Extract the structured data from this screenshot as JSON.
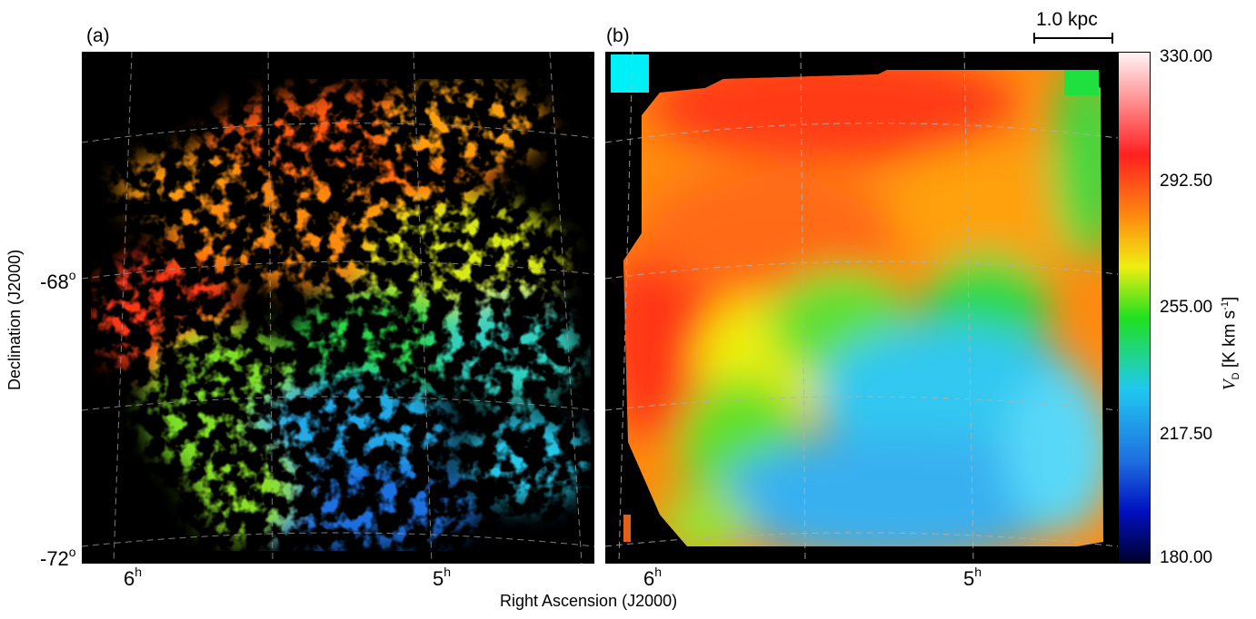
{
  "panel_a_label": "(a)",
  "panel_b_label": "(b)",
  "scalebar_label": "1.0 kpc",
  "xaxis_title": "Right Ascension (J2000)",
  "yaxis_title": "Declination (J2000)",
  "xticks": [
    {
      "base": "6",
      "sup": "h"
    },
    {
      "base": "5",
      "sup": "h"
    },
    {
      "base": "6",
      "sup": "h"
    },
    {
      "base": "5",
      "sup": "h"
    }
  ],
  "yticks": [
    {
      "base": "-68",
      "sup": "o"
    },
    {
      "base": "-72",
      "sup": "o"
    }
  ],
  "colorbar": {
    "title_sym": "V",
    "title_sub": "D",
    "title_unit": " [K km s",
    "title_exp": "-1",
    "title_close": "]",
    "ticks": [
      "330.00",
      "292.50",
      "255.00",
      "217.50",
      "180.00"
    ],
    "stops": [
      "#fff3f5",
      "#ff2020",
      "#ff8a10",
      "#eeee10",
      "#20e020",
      "#20c8f0",
      "#1e6fe0",
      "#0010c0",
      "#00002a"
    ]
  },
  "colors": {
    "background": "#000000",
    "grid": "#9a9a9a"
  }
}
